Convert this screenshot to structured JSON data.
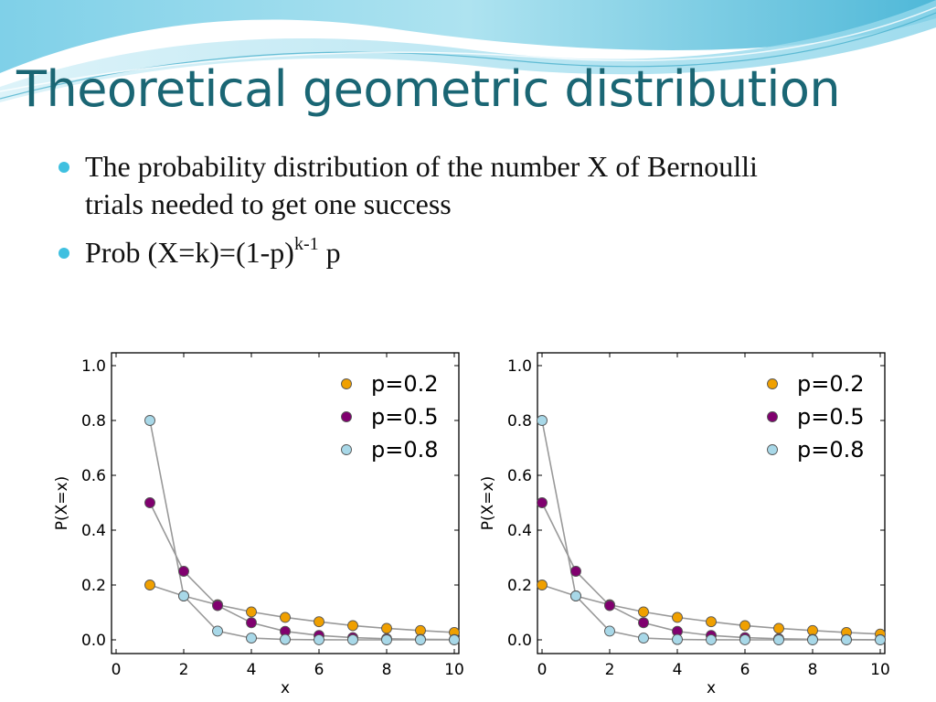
{
  "slide": {
    "title": "Theoretical geometric distribution",
    "bullets": [
      {
        "text": "The probability distribution of the number X of Bernoulli trials needed to get one success"
      },
      {
        "base": "Prob (X=k)=(1-p)",
        "sup": "k-1",
        "tail": " p"
      }
    ]
  },
  "colors": {
    "title": "#1a6674",
    "bullet": "#3fc0e0",
    "p02": "#f0a000",
    "p05": "#80006f",
    "p08": "#a8d8e8",
    "connector": "#999999"
  },
  "chart_data": [
    {
      "type": "scatter",
      "xlabel": "x",
      "ylabel": "P(X=x)",
      "xlim": [
        0,
        10
      ],
      "ylim": [
        0,
        1.0
      ],
      "xticks": [
        "0",
        "2",
        "4",
        "6",
        "8",
        "10"
      ],
      "yticks": [
        "0.0",
        "0.2",
        "0.4",
        "0.6",
        "0.8",
        "1.0"
      ],
      "grid": false,
      "legend": "top-right",
      "series": [
        {
          "name": "p=0.2",
          "color": "#f0a000",
          "x": [
            1,
            2,
            3,
            4,
            5,
            6,
            7,
            8,
            9,
            10
          ],
          "y": [
            0.2,
            0.16,
            0.128,
            0.102,
            0.082,
            0.066,
            0.052,
            0.042,
            0.034,
            0.027
          ]
        },
        {
          "name": "p=0.5",
          "color": "#80006f",
          "x": [
            1,
            2,
            3,
            4,
            5,
            6,
            7,
            8,
            9,
            10
          ],
          "y": [
            0.5,
            0.25,
            0.125,
            0.0625,
            0.031,
            0.016,
            0.008,
            0.004,
            0.002,
            0.001
          ]
        },
        {
          "name": "p=0.8",
          "color": "#a8d8e8",
          "x": [
            1,
            2,
            3,
            4,
            5,
            6,
            7,
            8,
            9,
            10
          ],
          "y": [
            0.8,
            0.16,
            0.032,
            0.0064,
            0.0013,
            0.0003,
            0.0001,
            0,
            0,
            0
          ]
        }
      ]
    },
    {
      "type": "scatter",
      "xlabel": "x",
      "ylabel": "P(X=x)",
      "xlim": [
        0,
        10
      ],
      "ylim": [
        0,
        1.0
      ],
      "xticks": [
        "0",
        "2",
        "4",
        "6",
        "8",
        "10"
      ],
      "yticks": [
        "0.0",
        "0.2",
        "0.4",
        "0.6",
        "0.8",
        "1.0"
      ],
      "grid": false,
      "legend": "top-right",
      "series": [
        {
          "name": "p=0.2",
          "color": "#f0a000",
          "x": [
            0,
            1,
            2,
            3,
            4,
            5,
            6,
            7,
            8,
            9,
            10
          ],
          "y": [
            0.2,
            0.16,
            0.128,
            0.102,
            0.082,
            0.066,
            0.052,
            0.042,
            0.034,
            0.027,
            0.021
          ]
        },
        {
          "name": "p=0.5",
          "color": "#80006f",
          "x": [
            0,
            1,
            2,
            3,
            4,
            5,
            6,
            7,
            8,
            9,
            10
          ],
          "y": [
            0.5,
            0.25,
            0.125,
            0.0625,
            0.031,
            0.016,
            0.008,
            0.004,
            0.002,
            0.001,
            0.0005
          ]
        },
        {
          "name": "p=0.8",
          "color": "#a8d8e8",
          "x": [
            0,
            1,
            2,
            3,
            4,
            5,
            6,
            7,
            8,
            9,
            10
          ],
          "y": [
            0.8,
            0.16,
            0.032,
            0.0064,
            0.0013,
            0.0003,
            0.0001,
            0,
            0,
            0,
            0
          ]
        }
      ]
    }
  ]
}
